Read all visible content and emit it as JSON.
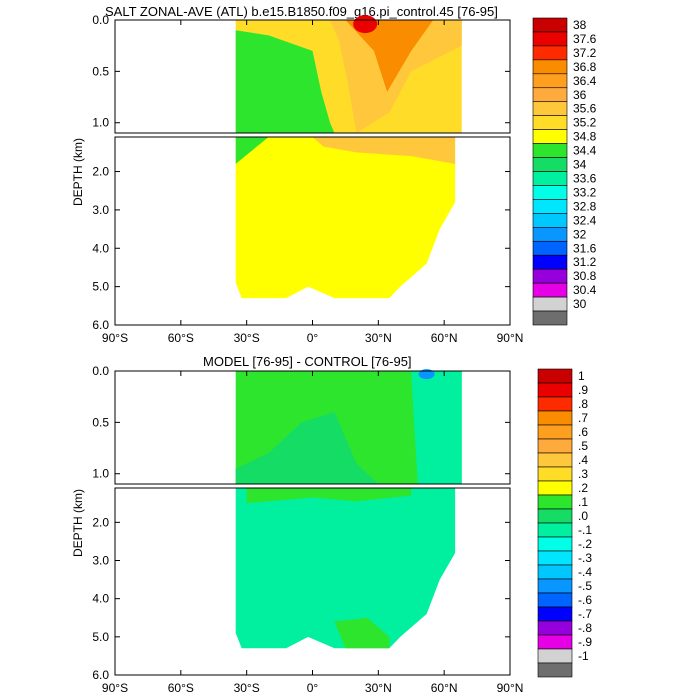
{
  "chart_data": [
    {
      "type": "contour",
      "title": "SALT ZONAL-AVE (ATL) b.e15.B1850.f09_g16.pi_control.45 [76-95]",
      "xlabel": "",
      "ylabel": "DEPTH (km)",
      "xlim": [
        -90,
        90
      ],
      "ylim": [
        6.0,
        0.0
      ],
      "x_ticks": [
        -90,
        -60,
        -30,
        0,
        30,
        60,
        90
      ],
      "x_tick_labels": [
        "90°S",
        "60°S",
        "30°S",
        "0°",
        "30°N",
        "60°N",
        "90°N"
      ],
      "upper_y_ticks": [
        0.0,
        0.5,
        1.0
      ],
      "upper_y_tick_labels": [
        "0.0",
        "0.5",
        "1.0"
      ],
      "lower_y_ticks": [
        2.0,
        3.0,
        4.0,
        5.0,
        6.0
      ],
      "lower_y_tick_labels": [
        "2.0",
        "3.0",
        "4.0",
        "5.0",
        "6.0"
      ],
      "colorbar_levels": [
        "38",
        "37.6",
        "37.2",
        "36.8",
        "36.4",
        "36",
        "35.6",
        "35.2",
        "34.8",
        "34.4",
        "34",
        "33.6",
        "33.2",
        "32.8",
        "32.4",
        "32",
        "31.6",
        "31.2",
        "30.8",
        "30.4",
        "30"
      ],
      "colorbar_colors": [
        "#c80000",
        "#eb0000",
        "#ff2b00",
        "#fa8c00",
        "#ff9f20",
        "#ffaa3c",
        "#ffc83c",
        "#ffdc28",
        "#ffff00",
        "#2ee52e",
        "#14dc64",
        "#00f0a0",
        "#00ffe6",
        "#00e6ff",
        "#00c8ff",
        "#0a96ff",
        "#0064ff",
        "#0000ff",
        "#9600dc",
        "#e600e6",
        "#d2d2d2",
        "#6e6e6e"
      ],
      "field_summary": [
        {
          "region": "upper 0-1.1 km, 30N-60N",
          "value_range": [
            35.2,
            38.0
          ]
        },
        {
          "region": "upper 0-1.1 km, 30S-0",
          "value_range": [
            34.4,
            35.6
          ]
        },
        {
          "region": "deep 1.5-5.3 km",
          "value_range": [
            34.8,
            35.2
          ]
        }
      ]
    },
    {
      "type": "contour",
      "title": "MODEL [76-95] - CONTROL [76-95]",
      "xlabel": "",
      "ylabel": "DEPTH (km)",
      "xlim": [
        -90,
        90
      ],
      "ylim": [
        6.0,
        0.0
      ],
      "x_ticks": [
        -90,
        -60,
        -30,
        0,
        30,
        60,
        90
      ],
      "x_tick_labels": [
        "90°S",
        "60°S",
        "30°S",
        "0°",
        "30°N",
        "60°N",
        "90°N"
      ],
      "upper_y_ticks": [
        0.0,
        0.5,
        1.0
      ],
      "upper_y_tick_labels": [
        "0.0",
        "0.5",
        "1.0"
      ],
      "lower_y_ticks": [
        2.0,
        3.0,
        4.0,
        5.0,
        6.0
      ],
      "lower_y_tick_labels": [
        "2.0",
        "3.0",
        "4.0",
        "5.0",
        "6.0"
      ],
      "colorbar_levels": [
        "1",
        ".9",
        ".8",
        ".7",
        ".6",
        ".5",
        ".4",
        ".3",
        ".2",
        ".1",
        ".0",
        "-.1",
        "-.2",
        "-.3",
        "-.4",
        "-.5",
        "-.6",
        "-.7",
        "-.8",
        "-.9",
        "-1"
      ],
      "colorbar_colors": [
        "#c80000",
        "#eb0000",
        "#ff2b00",
        "#fa8c00",
        "#ff9f20",
        "#ffaa3c",
        "#ffc83c",
        "#ffdc28",
        "#ffff00",
        "#2ee52e",
        "#14dc64",
        "#00f0a0",
        "#00ffe6",
        "#00e6ff",
        "#00c8ff",
        "#0a96ff",
        "#0064ff",
        "#0000ff",
        "#9600dc",
        "#e600e6",
        "#d2d2d2",
        "#6e6e6e"
      ],
      "field_summary": [
        {
          "region": "upper 0-1.1 km, 30S-45N",
          "value_range": [
            0.0,
            0.1
          ]
        },
        {
          "region": "deep 1.3-5.3 km",
          "value_range": [
            -0.1,
            0.0
          ]
        },
        {
          "region": "upper near 50N",
          "value_range": [
            -0.4,
            0.0
          ]
        }
      ]
    }
  ]
}
